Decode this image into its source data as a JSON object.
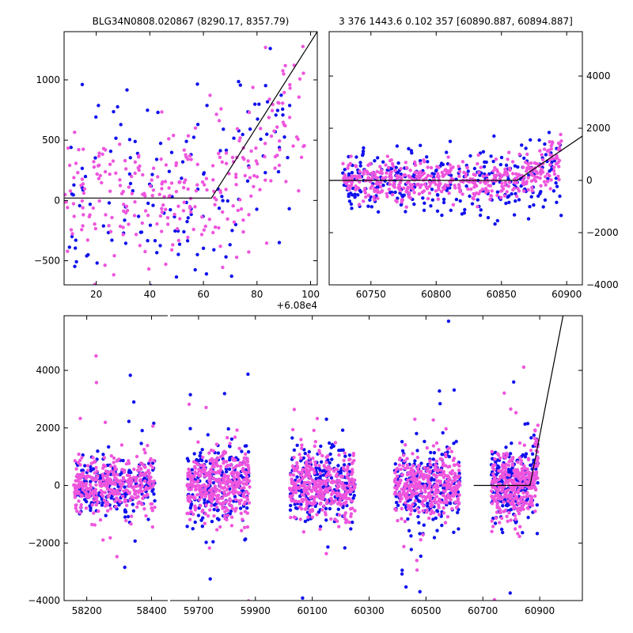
{
  "chart_data": [
    {
      "id": "zoom-left",
      "type": "scatter",
      "title": "BLG34N0808.020867 (8290.17, 8357.79)",
      "xlim": [
        6088,
        60902.5
      ],
      "ylim": [
        -700,
        1400
      ],
      "x_offset_label": "+6.08e4",
      "xticks": [
        {
          "v": 60820,
          "label": "20"
        },
        {
          "v": 60840,
          "label": "40"
        },
        {
          "v": 60860,
          "label": "60"
        },
        {
          "v": 60880,
          "label": "80"
        },
        {
          "v": 60900,
          "label": "100"
        }
      ],
      "yticks": [
        {
          "v": -500,
          "label": "−500"
        },
        {
          "v": 0,
          "label": "0"
        },
        {
          "v": 500,
          "label": "500"
        },
        {
          "v": 1000,
          "label": "1000"
        }
      ],
      "ytick_side": "left",
      "model_line": [
        [
          60808,
          20
        ],
        [
          60863,
          20
        ],
        [
          60902.5,
          1400
        ]
      ],
      "series": [
        {
          "color": "#1010ee",
          "seed": 11,
          "n": 150,
          "xrange": [
            60809,
            60893
          ],
          "spread": 480
        },
        {
          "color": "#ee55dd",
          "seed": 23,
          "n": 290,
          "xrange": [
            60808,
            60898
          ],
          "spread": 280
        }
      ]
    },
    {
      "id": "zoom-right",
      "type": "scatter",
      "title": "3 376 1443.6 0.102 357 [60890.887, 60894.887]",
      "xlim": [
        60718,
        60912
      ],
      "ylim": [
        -4000,
        5700
      ],
      "xticks": [
        {
          "v": 60750,
          "label": "60750"
        },
        {
          "v": 60800,
          "label": "60800"
        },
        {
          "v": 60850,
          "label": "60850"
        },
        {
          "v": 60900,
          "label": "60900"
        }
      ],
      "yticks": [
        {
          "v": -4000,
          "label": "−4000"
        },
        {
          "v": -2000,
          "label": "−2000"
        },
        {
          "v": 0,
          "label": "0"
        },
        {
          "v": 2000,
          "label": "2000"
        },
        {
          "v": 4000,
          "label": "4000"
        }
      ],
      "ytick_side": "right",
      "model_line": [
        [
          60718,
          0
        ],
        [
          60862,
          0
        ],
        [
          60912,
          1700
        ]
      ],
      "series": [
        {
          "color": "#1010ee",
          "seed": 37,
          "n": 300,
          "xrange": [
            60728,
            60896
          ],
          "spread": 700
        },
        {
          "color": "#ee55dd",
          "seed": 41,
          "n": 480,
          "xrange": [
            60728,
            60896
          ],
          "spread": 400
        }
      ]
    },
    {
      "id": "full",
      "type": "scatter",
      "title": "",
      "ylim": [
        -4000,
        5900
      ],
      "broken_x": [
        {
          "xlim": [
            58130,
            58450
          ],
          "xticks": [
            {
              "v": 58200,
              "label": "58200"
            },
            {
              "v": 58400,
              "label": "58400"
            }
          ]
        },
        {
          "xlim": [
            59600,
            61050
          ],
          "xticks": [
            {
              "v": 59700,
              "label": "59700"
            },
            {
              "v": 59900,
              "label": "59900"
            },
            {
              "v": 60100,
              "label": "60100"
            },
            {
              "v": 60300,
              "label": "60300"
            },
            {
              "v": 60500,
              "label": "60500"
            },
            {
              "v": 60700,
              "label": "60700"
            },
            {
              "v": 60900,
              "label": "60900"
            }
          ]
        }
      ],
      "yticks": [
        {
          "v": -4000,
          "label": "−4000"
        },
        {
          "v": -2000,
          "label": "−2000"
        },
        {
          "v": 0,
          "label": "0"
        },
        {
          "v": 2000,
          "label": "2000"
        },
        {
          "v": 4000,
          "label": "4000"
        }
      ],
      "ytick_side": "left",
      "model_line": [
        [
          60668,
          0
        ],
        [
          60866,
          0
        ],
        [
          60982,
          5900
        ]
      ],
      "seasons": [
        {
          "xrange": [
            58160,
            58410
          ],
          "spread": 550
        },
        {
          "xrange": [
            59660,
            59880
          ],
          "spread": 750
        },
        {
          "xrange": [
            60020,
            60250
          ],
          "spread": 650
        },
        {
          "xrange": [
            60390,
            60620
          ],
          "spread": 700
        },
        {
          "xrange": [
            60730,
            60895
          ],
          "spread": 650
        }
      ],
      "series": [
        {
          "color": "#1010ee",
          "seed": 53,
          "n_per_season": 220
        },
        {
          "color": "#ee55dd",
          "seed": 67,
          "n_per_season": 360
        }
      ]
    }
  ]
}
